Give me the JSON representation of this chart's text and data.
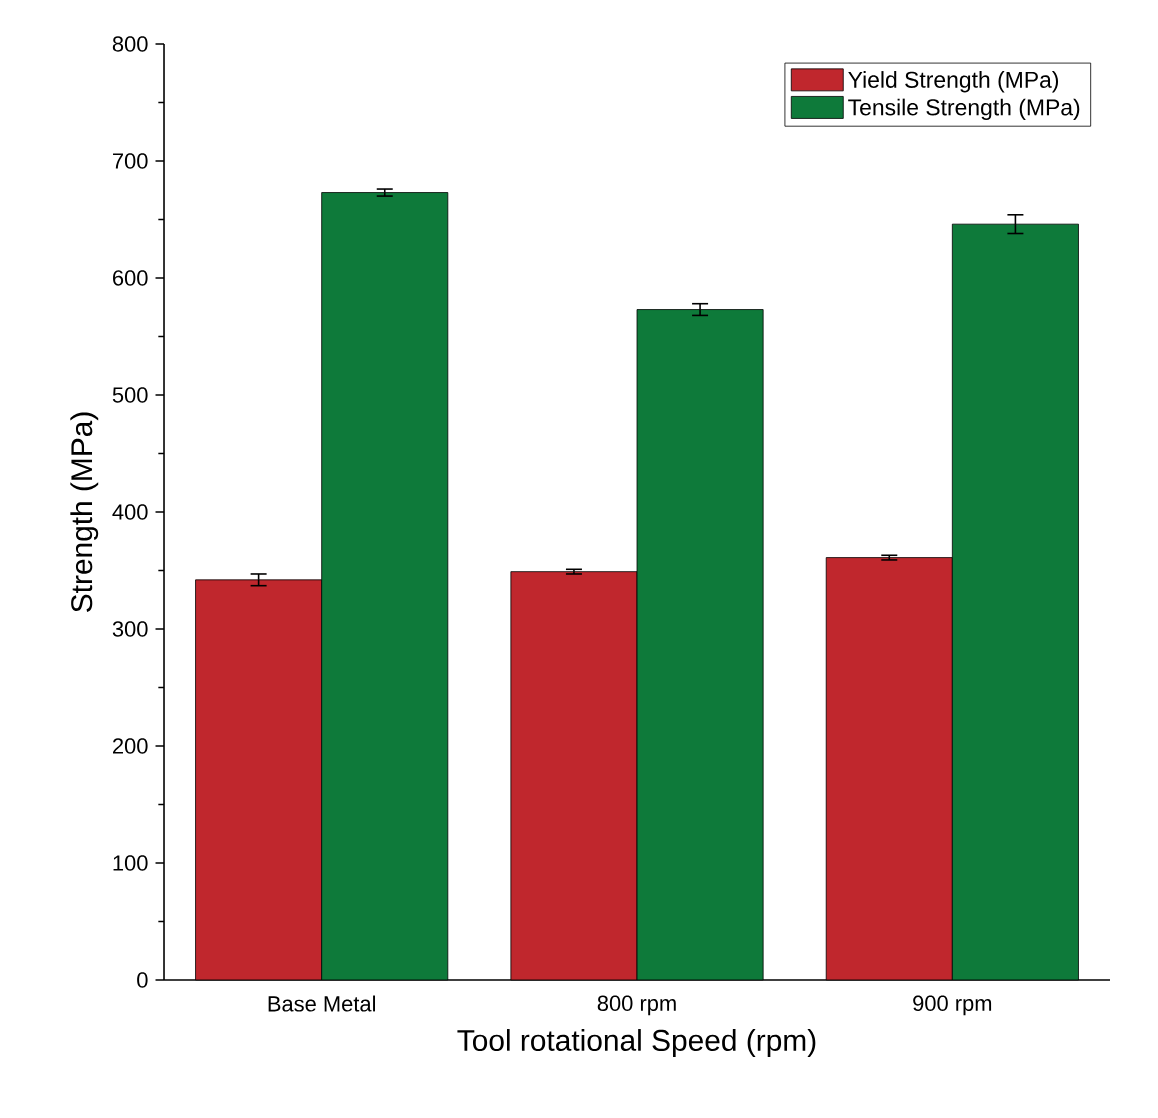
{
  "chart_data": {
    "type": "bar",
    "xlabel": "Tool rotational Speed (rpm)",
    "ylabel": "Strength (MPa)",
    "categories": [
      "Base Metal",
      "800 rpm",
      "900 rpm"
    ],
    "series": [
      {
        "name": "Yield Strength (MPa)",
        "color": "#c0272d",
        "values": [
          342,
          349,
          361
        ],
        "errors": [
          5,
          2,
          2
        ]
      },
      {
        "name": "Tensile Strength (MPa)",
        "color": "#0e7a3a",
        "values": [
          673,
          573,
          646
        ],
        "errors": [
          3,
          5,
          8
        ]
      }
    ],
    "ylim": [
      0,
      800
    ],
    "yticks": [
      0,
      100,
      200,
      300,
      400,
      500,
      600,
      700,
      800
    ],
    "legend": "top right",
    "grid": false
  }
}
